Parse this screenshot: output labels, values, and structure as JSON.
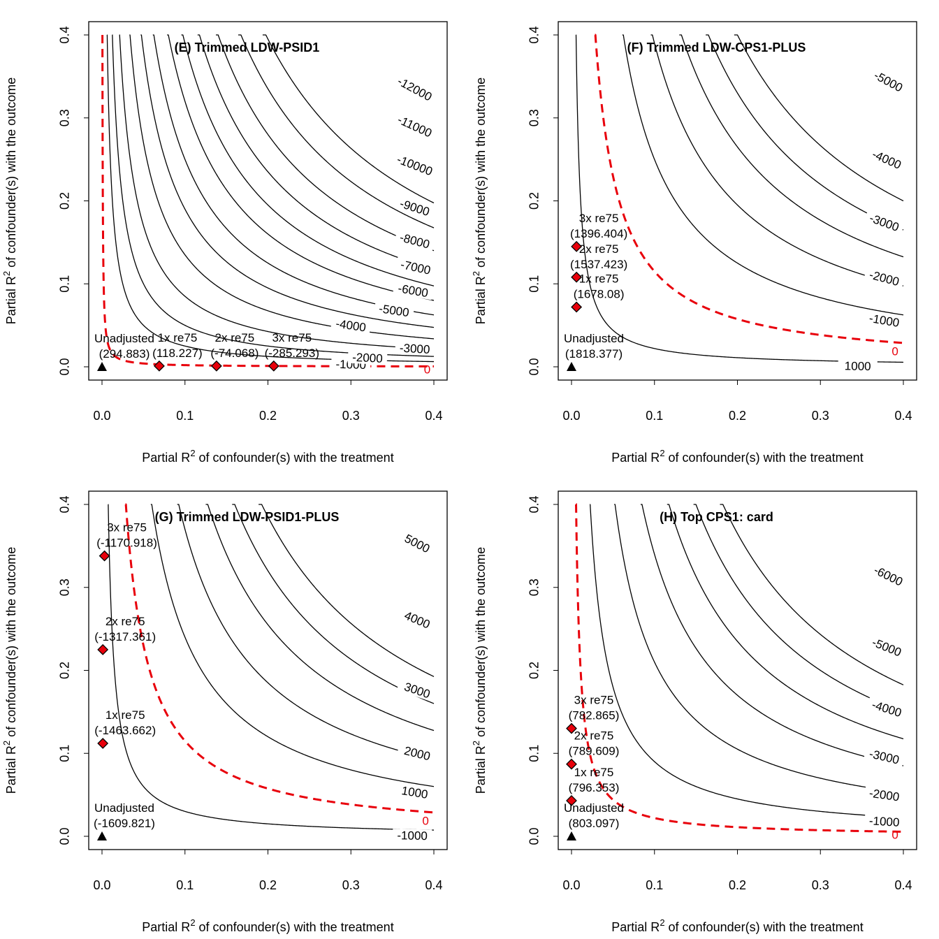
{
  "figure": {
    "panels": 4
  },
  "chart_data": [
    {
      "type": "contour",
      "title": "(E) Trimmed LDW-PSID1",
      "xlabel": "Partial R",
      "xlabel_sup": "2",
      "xlabel_rest": " of confounder(s) with the treatment",
      "ylabel": "Partial R",
      "ylabel_sup": "2",
      "ylabel_rest": " of confounder(s) with the outcome",
      "xlim": [
        0,
        0.4
      ],
      "ylim": [
        0,
        0.4
      ],
      "xticks": [
        "0.0",
        "0.1",
        "0.2",
        "0.3",
        "0.4"
      ],
      "yticks": [
        "0.0",
        "0.1",
        "0.2",
        "0.3",
        "0.4"
      ],
      "contours": [
        {
          "label": "-1000",
          "k": 0.0025,
          "lx": 0.3,
          "ly": 0.003
        },
        {
          "label": "-2000",
          "k": 0.005,
          "lx": 0.32,
          "ly": 0.011
        },
        {
          "label": "-3000",
          "k": 0.0085,
          "lx": 0.377,
          "ly": 0.022
        },
        {
          "label": "-4000",
          "k": 0.0135,
          "lx": 0.3,
          "ly": 0.05
        },
        {
          "label": "-5000",
          "k": 0.019,
          "lx": 0.352,
          "ly": 0.068
        },
        {
          "label": "-6000",
          "k": 0.025,
          "lx": 0.375,
          "ly": 0.092
        },
        {
          "label": "-7000",
          "k": 0.032,
          "lx": 0.378,
          "ly": 0.12
        },
        {
          "label": "-8000",
          "k": 0.039,
          "lx": 0.377,
          "ly": 0.152
        },
        {
          "label": "-9000",
          "k": 0.047,
          "lx": 0.377,
          "ly": 0.192
        },
        {
          "label": "-10000",
          "k": 0.056,
          "lx": 0.377,
          "ly": 0.243
        },
        {
          "label": "-11000",
          "k": 0.067,
          "lx": 0.377,
          "ly": 0.29
        },
        {
          "label": "-12000",
          "k": 0.079,
          "lx": 0.377,
          "ly": 0.335
        }
      ],
      "zero_contour": {
        "label": "0",
        "k": 0.0002,
        "lx": 0.392,
        "ly": -0.003
      },
      "bounds": [
        {
          "name": "1x re75",
          "value": "(118.227)",
          "x": 0.069,
          "y": 0.001
        },
        {
          "name": "2x re75",
          "value": "(-74.068)",
          "x": 0.138,
          "y": 0.001
        },
        {
          "name": "3x re75",
          "value": "(-285.293)",
          "x": 0.207,
          "y": 0.001
        }
      ],
      "unadjusted": {
        "name": "Unadjusted",
        "value": "(294.883)",
        "x": 0.0,
        "y": 0.0
      }
    },
    {
      "type": "contour",
      "title": "(F) Trimmed LDW-CPS1-PLUS",
      "xlabel": "Partial R",
      "xlabel_sup": "2",
      "xlabel_rest": " of confounder(s) with the treatment",
      "ylabel": "Partial R",
      "ylabel_sup": "2",
      "ylabel_rest": " of confounder(s) with the outcome",
      "xlim": [
        0,
        0.4
      ],
      "ylim": [
        0,
        0.4
      ],
      "xticks": [
        "0.0",
        "0.1",
        "0.2",
        "0.3",
        "0.4"
      ],
      "yticks": [
        "0.0",
        "0.1",
        "0.2",
        "0.3",
        "0.4"
      ],
      "contours": [
        {
          "label": "1000",
          "k": 0.0022,
          "lx": 0.345,
          "ly": 0.001
        },
        {
          "label": "-1000",
          "k": 0.025,
          "lx": 0.377,
          "ly": 0.056
        },
        {
          "label": "-2000",
          "k": 0.039,
          "lx": 0.377,
          "ly": 0.107
        },
        {
          "label": "-3000",
          "k": 0.053,
          "lx": 0.377,
          "ly": 0.174
        },
        {
          "label": "-4000",
          "k": 0.066,
          "lx": 0.38,
          "ly": 0.25
        },
        {
          "label": "-5000",
          "k": 0.08,
          "lx": 0.382,
          "ly": 0.344
        }
      ],
      "zero_contour": {
        "label": "0",
        "k": 0.0115,
        "lx": 0.39,
        "ly": 0.019
      },
      "bounds": [
        {
          "name": "1x re75",
          "value": "(1678.08)",
          "x": 0.006,
          "y": 0.072
        },
        {
          "name": "2x re75",
          "value": "(1537.423)",
          "x": 0.006,
          "y": 0.108
        },
        {
          "name": "3x re75",
          "value": "(1396.404)",
          "x": 0.006,
          "y": 0.145
        }
      ],
      "unadjusted": {
        "name": "Unadjusted",
        "value": "(1818.377)",
        "x": 0.0,
        "y": 0.0
      }
    },
    {
      "type": "contour",
      "title": "(G) Trimmed LDW-PSID1-PLUS",
      "xlabel": "Partial R",
      "xlabel_sup": "2",
      "xlabel_rest": " of confounder(s) with the treatment",
      "ylabel": "Partial R",
      "ylabel_sup": "2",
      "ylabel_rest": " of confounder(s) with the outcome",
      "xlim": [
        0,
        0.4
      ],
      "ylim": [
        0,
        0.4
      ],
      "xticks": [
        "0.0",
        "0.1",
        "0.2",
        "0.3",
        "0.4"
      ],
      "yticks": [
        "0.0",
        "0.1",
        "0.2",
        "0.3",
        "0.4"
      ],
      "contours": [
        {
          "label": "-1000",
          "k": 0.003,
          "lx": 0.374,
          "ly": 0.001
        },
        {
          "label": "1000",
          "k": 0.024,
          "lx": 0.377,
          "ly": 0.053
        },
        {
          "label": "2000",
          "k": 0.037,
          "lx": 0.38,
          "ly": 0.1
        },
        {
          "label": "3000",
          "k": 0.051,
          "lx": 0.38,
          "ly": 0.176
        },
        {
          "label": "4000",
          "k": 0.064,
          "lx": 0.38,
          "ly": 0.261
        },
        {
          "label": "5000",
          "k": 0.077,
          "lx": 0.38,
          "ly": 0.353
        }
      ],
      "zero_contour": {
        "label": "0",
        "k": 0.0115,
        "lx": 0.39,
        "ly": 0.019
      },
      "bounds": [
        {
          "name": "1x re75",
          "value": "(-1463.662)",
          "x": 0.001,
          "y": 0.112
        },
        {
          "name": "2x re75",
          "value": "(-1317.361)",
          "x": 0.001,
          "y": 0.225
        },
        {
          "name": "3x re75",
          "value": "(-1170.918)",
          "x": 0.003,
          "y": 0.338
        }
      ],
      "unadjusted": {
        "name": "Unadjusted",
        "value": "(-1609.821)",
        "x": 0.0,
        "y": 0.0
      }
    },
    {
      "type": "contour",
      "title": "(H) Top CPS1: card",
      "xlabel": "Partial R",
      "xlabel_sup": "2",
      "xlabel_rest": " of confounder(s) with the treatment",
      "ylabel": "Partial R",
      "ylabel_sup": "2",
      "ylabel_rest": " of confounder(s) with the outcome",
      "xlim": [
        0,
        0.4
      ],
      "ylim": [
        0,
        0.4
      ],
      "xticks": [
        "0.0",
        "0.1",
        "0.2",
        "0.3",
        "0.4"
      ],
      "yticks": [
        "0.0",
        "0.1",
        "0.2",
        "0.3",
        "0.4"
      ],
      "contours": [
        {
          "label": "-1000",
          "k": 0.009,
          "lx": 0.377,
          "ly": 0.018
        },
        {
          "label": "-2000",
          "k": 0.021,
          "lx": 0.377,
          "ly": 0.05
        },
        {
          "label": "-3000",
          "k": 0.034,
          "lx": 0.377,
          "ly": 0.096
        },
        {
          "label": "-4000",
          "k": 0.047,
          "lx": 0.38,
          "ly": 0.154
        },
        {
          "label": "-5000",
          "k": 0.06,
          "lx": 0.38,
          "ly": 0.228
        },
        {
          "label": "-6000",
          "k": 0.073,
          "lx": 0.382,
          "ly": 0.314
        }
      ],
      "zero_contour": {
        "label": "0",
        "k": 0.0022,
        "lx": 0.39,
        "ly": 0.002
      },
      "bounds": [
        {
          "name": "1x re75",
          "value": "(796.353)",
          "x": 0.0,
          "y": 0.043
        },
        {
          "name": "2x re75",
          "value": "(789.609)",
          "x": 0.0,
          "y": 0.087
        },
        {
          "name": "3x re75",
          "value": "(782.865)",
          "x": 0.0,
          "y": 0.13
        }
      ],
      "unadjusted": {
        "name": "Unadjusted",
        "value": "(803.097)",
        "x": 0.0,
        "y": 0.0
      }
    }
  ]
}
